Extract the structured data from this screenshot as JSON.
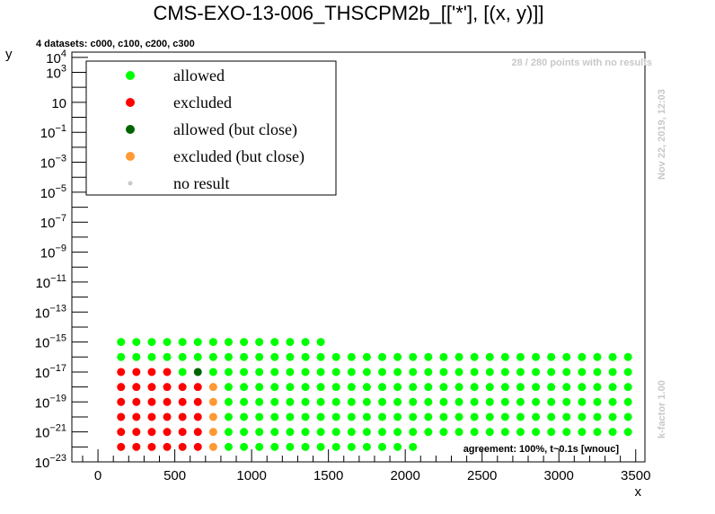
{
  "chart_data": {
    "type": "scatter",
    "title": "CMS-EXO-13-006_THSCPM2b_[['*'], [(x, y)]]",
    "xlabel": "x",
    "ylabel": "y",
    "xlim": [
      -170,
      3560
    ],
    "ylim_exp": [
      -23,
      4.35
    ],
    "yscale": "log",
    "x_ticks": [
      0,
      500,
      1000,
      1500,
      2000,
      2500,
      3000,
      3500
    ],
    "y_ticks": [
      {
        "exp": 4,
        "label": "10",
        "sup": "4"
      },
      {
        "exp": 3,
        "label": "10",
        "sup": "3"
      },
      {
        "exp": 1,
        "label": "10",
        "sup": ""
      },
      {
        "exp": -1,
        "label": "10",
        "sup": "−1"
      },
      {
        "exp": -3,
        "label": "10",
        "sup": "−3"
      },
      {
        "exp": -5,
        "label": "10",
        "sup": "−5"
      },
      {
        "exp": -7,
        "label": "10",
        "sup": "−7"
      },
      {
        "exp": -9,
        "label": "10",
        "sup": "−9"
      },
      {
        "exp": -11,
        "label": "10",
        "sup": "−11"
      },
      {
        "exp": -13,
        "label": "10",
        "sup": "−13"
      },
      {
        "exp": -15,
        "label": "10",
        "sup": "−15"
      },
      {
        "exp": -17,
        "label": "10",
        "sup": "−17"
      },
      {
        "exp": -19,
        "label": "10",
        "sup": "−19"
      },
      {
        "exp": -21,
        "label": "10",
        "sup": "−21"
      },
      {
        "exp": -23,
        "label": "10",
        "sup": "−23"
      }
    ],
    "datasets_label": "4 datasets: c000, c100, c200, c300",
    "no_results_label": "28 / 280 points with no results",
    "timestamp": "Nov 22, 2019, 12:03",
    "kfactor": "k-factor 1.00",
    "agreement": "agreement: 100%, t~0.1s [wnouc]",
    "legend": {
      "placement": "top-left",
      "entries": [
        {
          "label": "allowed",
          "color": "#00ff00",
          "size": "large"
        },
        {
          "label": "excluded",
          "color": "#ff0000",
          "size": "large"
        },
        {
          "label": "allowed (but close)",
          "color": "#006400",
          "size": "large"
        },
        {
          "label": "excluded (but close)",
          "color": "#ff9933",
          "size": "large"
        },
        {
          "label": "no result",
          "color": "#c8c8c8",
          "size": "small"
        }
      ]
    },
    "colors": {
      "allowed": "#00ff00",
      "excluded": "#ff0000",
      "allowed_close": "#006400",
      "excluded_close": "#ff9933",
      "no_result": "#c8c8c8"
    },
    "grid": false,
    "series": [
      {
        "category": "excluded",
        "points": [
          [
            150,
            -17
          ],
          [
            250,
            -17
          ],
          [
            350,
            -17
          ],
          [
            450,
            -17
          ],
          [
            150,
            -18
          ],
          [
            250,
            -18
          ],
          [
            350,
            -18
          ],
          [
            450,
            -18
          ],
          [
            550,
            -18
          ],
          [
            650,
            -18
          ],
          [
            150,
            -19
          ],
          [
            250,
            -19
          ],
          [
            350,
            -19
          ],
          [
            450,
            -19
          ],
          [
            550,
            -19
          ],
          [
            650,
            -19
          ],
          [
            150,
            -20
          ],
          [
            250,
            -20
          ],
          [
            350,
            -20
          ],
          [
            450,
            -20
          ],
          [
            550,
            -20
          ],
          [
            650,
            -20
          ],
          [
            150,
            -21
          ],
          [
            250,
            -21
          ],
          [
            350,
            -21
          ],
          [
            450,
            -21
          ],
          [
            550,
            -21
          ],
          [
            650,
            -21
          ],
          [
            150,
            -22
          ],
          [
            250,
            -22
          ],
          [
            350,
            -22
          ],
          [
            450,
            -22
          ],
          [
            550,
            -22
          ],
          [
            650,
            -22
          ]
        ]
      },
      {
        "category": "allowed_close",
        "points": [
          [
            650,
            -17
          ]
        ]
      },
      {
        "category": "excluded_close",
        "points": [
          [
            750,
            -18
          ],
          [
            750,
            -19
          ],
          [
            750,
            -20
          ],
          [
            750,
            -21
          ],
          [
            750,
            -22
          ]
        ]
      },
      {
        "category": "no_result",
        "points": [
          [
            0,
            3.2
          ],
          [
            0,
            3.0
          ],
          [
            0,
            0.6
          ]
        ]
      },
      {
        "category": "allowed",
        "rows": [
          {
            "exp": -15,
            "x": [
              150,
              250,
              350,
              450,
              550,
              650,
              750,
              850,
              950,
              1050,
              1150,
              1250,
              1350,
              1450
            ]
          },
          {
            "exp": -16,
            "x": [
              150,
              250,
              350,
              450,
              550,
              650,
              750,
              850,
              950,
              1050,
              1150,
              1250,
              1350,
              1450,
              1550,
              1650,
              1750,
              1850,
              1950,
              2050,
              2150,
              2250,
              2350,
              2450,
              2550,
              2650,
              2750,
              2850,
              2950,
              3050,
              3150,
              3250,
              3350,
              3450
            ]
          },
          {
            "exp": -17,
            "x": [
              550,
              750,
              850,
              950,
              1050,
              1150,
              1250,
              1350,
              1450,
              1550,
              1650,
              1750,
              1850,
              1950,
              2050,
              2150,
              2250,
              2350,
              2450,
              2550,
              2650,
              2750,
              2850,
              2950,
              3050,
              3150,
              3250,
              3350,
              3450
            ]
          },
          {
            "exp": -18,
            "x": [
              850,
              950,
              1050,
              1150,
              1250,
              1350,
              1450,
              1550,
              1650,
              1750,
              1850,
              1950,
              2050,
              2150,
              2250,
              2350,
              2450,
              2550,
              2650,
              2750,
              2850,
              2950,
              3050,
              3150,
              3250,
              3350,
              3450
            ]
          },
          {
            "exp": -19,
            "x": [
              850,
              950,
              1050,
              1150,
              1250,
              1350,
              1450,
              1550,
              1650,
              1750,
              1850,
              1950,
              2050,
              2150,
              2250,
              2350,
              2450,
              2550,
              2650,
              2750,
              2850,
              2950,
              3050,
              3150,
              3250,
              3350,
              3450
            ]
          },
          {
            "exp": -20,
            "x": [
              850,
              950,
              1050,
              1150,
              1250,
              1350,
              1450,
              1550,
              1650,
              1750,
              1850,
              1950,
              2050,
              2150,
              2250,
              2350,
              2450,
              2550,
              2650,
              2750,
              2850,
              2950,
              3050,
              3150,
              3250,
              3350,
              3450
            ]
          },
          {
            "exp": -21,
            "x": [
              850,
              950,
              1050,
              1150,
              1250,
              1350,
              1450,
              1550,
              1650,
              1750,
              1850,
              1950,
              2050,
              2150,
              2250,
              2350,
              2450,
              2550,
              2650,
              2750,
              2850,
              2950,
              3050,
              3150,
              3250,
              3350,
              3450
            ]
          },
          {
            "exp": -22,
            "x": [
              850,
              950,
              1050,
              1150,
              1250,
              1350,
              1450,
              1550,
              1650,
              1750,
              1850,
              1950,
              2050
            ]
          }
        ]
      }
    ]
  }
}
